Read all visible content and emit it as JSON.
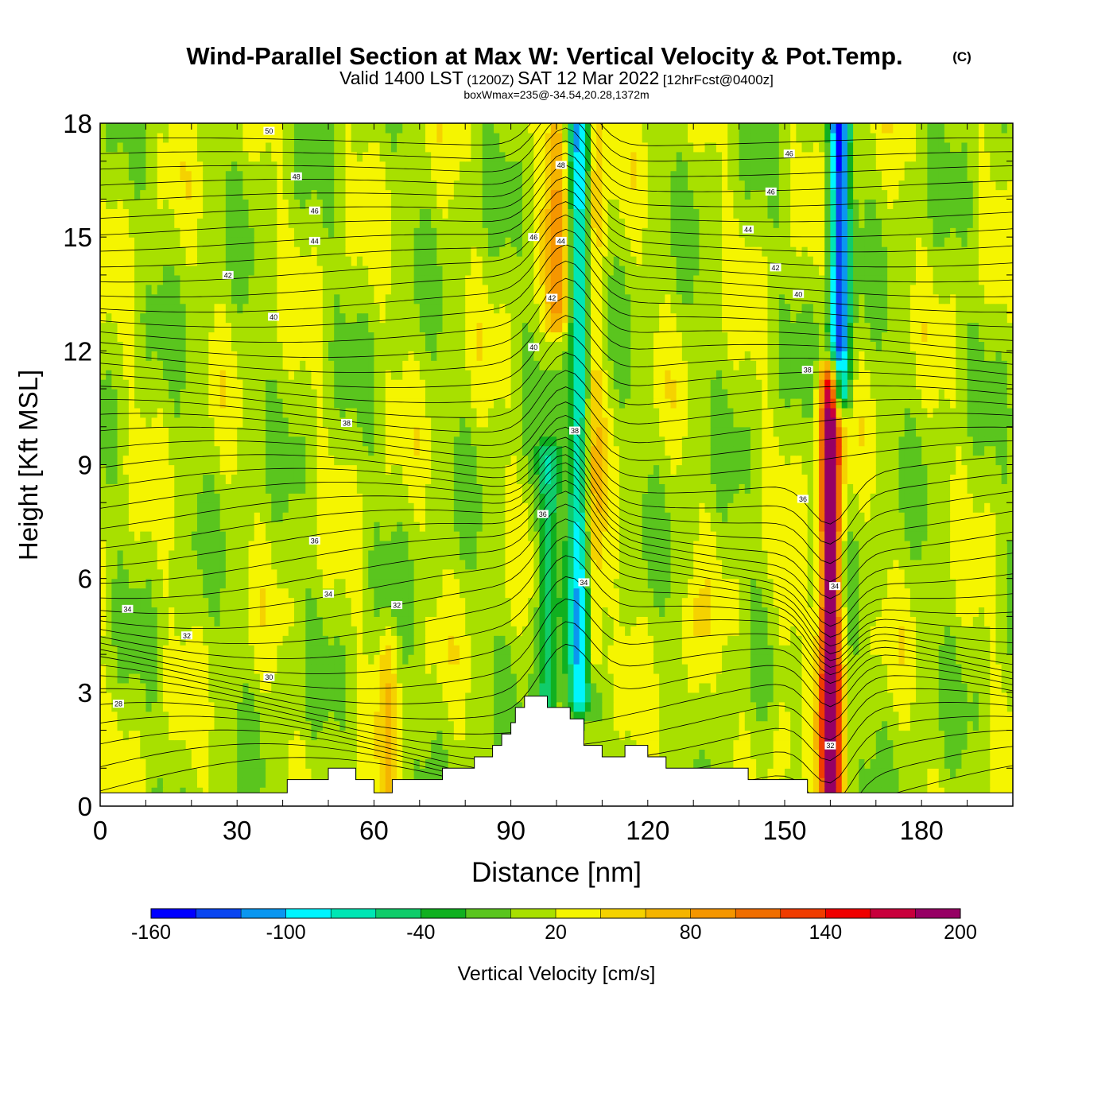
{
  "chart_data": {
    "type": "contour-section",
    "title": "Wind-Parallel Section at Max W: Vertical Velocity & Pot.Temp.",
    "title_mark": "(C)",
    "subtitle_valid": "Valid 1400 LST",
    "subtitle_utc": "(1200Z)",
    "subtitle_date": "SAT 12 Mar 2022",
    "subtitle_fcst": "[12hrFcst@0400z]",
    "subtitle2": "boxWmax=235@-34.54,20.28,1372m",
    "xlabel": "Distance [nm]",
    "ylabel": "Height [Kft MSL]",
    "xlim": [
      0,
      200
    ],
    "ylim": [
      0,
      18
    ],
    "x_ticks": [
      0,
      30,
      60,
      90,
      120,
      150,
      180
    ],
    "y_ticks": [
      0,
      3,
      6,
      9,
      12,
      15,
      18
    ],
    "colorbar": {
      "label": "Vertical Velocity [cm/s]",
      "tick_labels": [
        "-160",
        "-100",
        "-40",
        "20",
        "80",
        "140",
        "200"
      ],
      "levels": [
        -160,
        -140,
        -120,
        -100,
        -80,
        -60,
        -40,
        -20,
        0,
        20,
        40,
        60,
        80,
        100,
        120,
        140,
        160,
        180,
        200
      ],
      "colors": [
        "#0000ff",
        "#0a46f0",
        "#0a96f0",
        "#00f5ff",
        "#00e6b4",
        "#10cc6a",
        "#10b020",
        "#5ac51e",
        "#a8e000",
        "#f5f500",
        "#f5d200",
        "#f5b400",
        "#f59600",
        "#f06e00",
        "#f03c00",
        "#f00000",
        "#c8003c",
        "#960064"
      ]
    },
    "updraft_core_max": 235,
    "features": [
      {
        "name": "updraft",
        "x": 108,
        "ymin": 4,
        "ymax": 18,
        "w": 50
      },
      {
        "name": "downdraft",
        "x": 105,
        "ymin": 3,
        "ymax": 18,
        "w": -110
      },
      {
        "name": "downdraft",
        "x": 98,
        "ymin": 2,
        "ymax": 9,
        "w": -70
      },
      {
        "name": "updraft",
        "x": 100,
        "ymin": 13,
        "ymax": 18,
        "w": 70
      },
      {
        "name": "updraft",
        "x": 160,
        "ymin": 0.5,
        "ymax": 11,
        "w": 200
      },
      {
        "name": "downdraft",
        "x": 162,
        "ymin": 11,
        "ymax": 18,
        "w": -150
      },
      {
        "name": "updraft",
        "x": 63,
        "ymin": 0.5,
        "ymax": 4,
        "w": 35
      },
      {
        "name": "updraft",
        "x": 130,
        "ymin": 1.5,
        "ymax": 5,
        "w": 25
      },
      {
        "name": "updraft",
        "x": 150,
        "ymin": 1.5,
        "ymax": 5,
        "w": 25
      }
    ],
    "terrain_profile_kft": {
      "x": [
        0,
        41,
        41,
        50,
        50,
        56,
        56,
        60,
        60,
        64,
        64,
        75,
        75,
        82,
        82,
        86,
        86,
        88,
        88,
        90,
        90,
        91,
        91,
        93,
        93,
        98,
        98,
        103,
        103,
        106,
        106,
        110,
        110,
        115,
        115,
        120,
        120,
        124,
        124,
        128,
        128,
        142,
        142,
        155,
        155,
        158,
        158,
        200
      ],
      "height": [
        0.35,
        0.35,
        0.7,
        0.7,
        1.0,
        1.0,
        0.7,
        0.7,
        0.35,
        0.35,
        0.7,
        0.7,
        1.0,
        1.0,
        1.3,
        1.3,
        1.6,
        1.6,
        1.9,
        1.9,
        2.2,
        2.2,
        2.6,
        2.6,
        2.9,
        2.9,
        2.6,
        2.6,
        2.3,
        2.3,
        1.6,
        1.6,
        1.3,
        1.3,
        1.6,
        1.6,
        1.3,
        1.3,
        1.0,
        1.0,
        1.0,
        1.0,
        0.7,
        0.7,
        0.35,
        0.35,
        0.35,
        0.35
      ]
    },
    "theta_contour_labels": [
      {
        "text": "50",
        "x": 37,
        "y": 17.8
      },
      {
        "text": "48",
        "x": 43,
        "y": 16.6
      },
      {
        "text": "46",
        "x": 47,
        "y": 15.7
      },
      {
        "text": "44",
        "x": 47,
        "y": 14.9
      },
      {
        "text": "42",
        "x": 28,
        "y": 14.0
      },
      {
        "text": "40",
        "x": 38,
        "y": 12.9
      },
      {
        "text": "38",
        "x": 54,
        "y": 10.1
      },
      {
        "text": "36",
        "x": 47,
        "y": 7.0
      },
      {
        "text": "34",
        "x": 50,
        "y": 5.6
      },
      {
        "text": "34",
        "x": 6,
        "y": 5.2
      },
      {
        "text": "32",
        "x": 65,
        "y": 5.3
      },
      {
        "text": "32",
        "x": 19,
        "y": 4.5
      },
      {
        "text": "30",
        "x": 37,
        "y": 3.4
      },
      {
        "text": "28",
        "x": 4,
        "y": 2.7
      },
      {
        "text": "48",
        "x": 101,
        "y": 16.9
      },
      {
        "text": "46",
        "x": 95,
        "y": 15.0
      },
      {
        "text": "44",
        "x": 101,
        "y": 14.9
      },
      {
        "text": "42",
        "x": 99,
        "y": 13.4
      },
      {
        "text": "40",
        "x": 95,
        "y": 12.1
      },
      {
        "text": "38",
        "x": 104,
        "y": 9.9
      },
      {
        "text": "36",
        "x": 97,
        "y": 7.7
      },
      {
        "text": "34",
        "x": 106,
        "y": 5.9
      },
      {
        "text": "46",
        "x": 151,
        "y": 17.2
      },
      {
        "text": "46",
        "x": 147,
        "y": 16.2
      },
      {
        "text": "44",
        "x": 142,
        "y": 15.2
      },
      {
        "text": "42",
        "x": 148,
        "y": 14.2
      },
      {
        "text": "40",
        "x": 153,
        "y": 13.5
      },
      {
        "text": "38",
        "x": 155,
        "y": 11.5
      },
      {
        "text": "36",
        "x": 154,
        "y": 8.1
      },
      {
        "text": "34",
        "x": 161,
        "y": 5.8
      },
      {
        "text": "32",
        "x": 160,
        "y": 1.6
      }
    ]
  }
}
